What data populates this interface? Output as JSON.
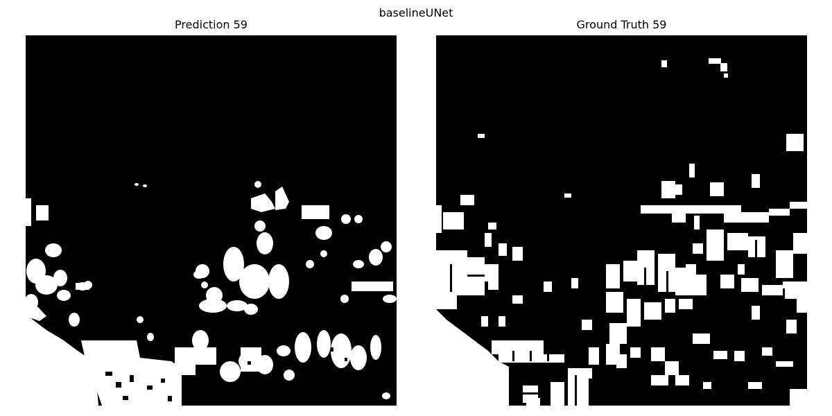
{
  "figure": {
    "suptitle": "baselineUNet",
    "panels": [
      {
        "title": "Prediction 59"
      },
      {
        "title": "Ground Truth 59"
      }
    ]
  },
  "colors": {
    "background": "#000000",
    "foreground": "#ffffff",
    "page": "#ffffff"
  }
}
